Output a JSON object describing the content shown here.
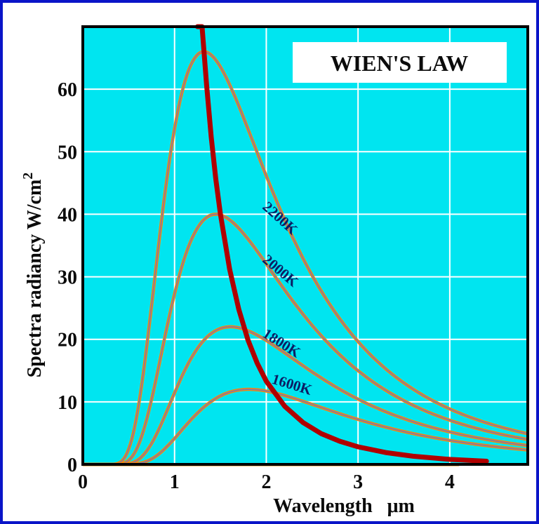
{
  "chart_data": {
    "type": "line",
    "title": "WIEN'S LAW",
    "xlabel": "Wavelength   μm",
    "ylabel": "Spectra radiancy  W/cm",
    "ylabel_sup": "2",
    "xlim": [
      0,
      4.85
    ],
    "ylim": [
      0,
      70
    ],
    "x_ticks": [
      "0",
      "1",
      "2",
      "3",
      "4"
    ],
    "y_ticks": [
      "0",
      "10",
      "20",
      "30",
      "40",
      "50",
      "60"
    ],
    "grid": true,
    "colors": {
      "background": "#00e5f0",
      "grid": "#ffffff",
      "frame": "#0a14c8",
      "wien_curve": "#b00000",
      "curve_outer": "#ff8800",
      "curve_inner": "#8a7a9c"
    },
    "series": [
      {
        "name": "2200K",
        "temperature_K": 2200,
        "peak_x": 1.32,
        "peak_y": 66
      },
      {
        "name": "2000K",
        "temperature_K": 2000,
        "peak_x": 1.45,
        "peak_y": 40
      },
      {
        "name": "1800K",
        "temperature_K": 1800,
        "peak_x": 1.61,
        "peak_y": 22
      },
      {
        "name": "1600K",
        "temperature_K": 1600,
        "peak_x": 1.81,
        "peak_y": 12
      }
    ],
    "wien_displacement_curve": {
      "x": [
        1.25,
        1.3,
        1.35,
        1.4,
        1.45,
        1.5,
        1.6,
        1.7,
        1.8,
        1.9,
        2.0,
        2.2,
        2.4,
        2.6,
        2.8,
        3.0,
        3.3,
        3.6,
        4.0,
        4.4
      ],
      "y": [
        75,
        70.5,
        60.5,
        52.3,
        45.6,
        40.0,
        31.2,
        24.8,
        19.9,
        16.2,
        13.3,
        9.3,
        6.7,
        4.9,
        3.7,
        2.8,
        1.9,
        1.3,
        0.8,
        0.5
      ]
    }
  }
}
